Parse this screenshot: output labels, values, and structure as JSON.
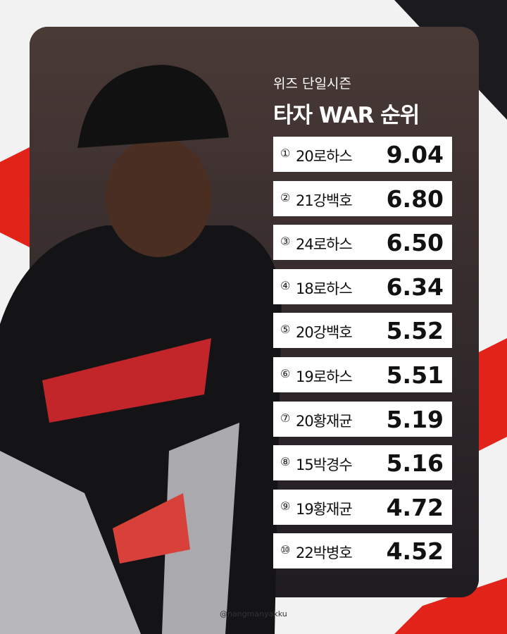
{
  "header": {
    "subtitle": "위즈 단일시즌",
    "title": "타자 WAR 순위"
  },
  "rows": [
    {
      "rank": "①",
      "name": "20로하스",
      "value": "9.04"
    },
    {
      "rank": "②",
      "name": "21강백호",
      "value": "6.80"
    },
    {
      "rank": "③",
      "name": "24로하스",
      "value": "6.50"
    },
    {
      "rank": "④",
      "name": "18로하스",
      "value": "6.34"
    },
    {
      "rank": "⑤",
      "name": "20강백호",
      "value": "5.52"
    },
    {
      "rank": "⑥",
      "name": "19로하스",
      "value": "5.51"
    },
    {
      "rank": "⑦",
      "name": "20황재균",
      "value": "5.19"
    },
    {
      "rank": "⑧",
      "name": "15박경수",
      "value": "5.16"
    },
    {
      "rank": "⑨",
      "name": "19황재균",
      "value": "4.72"
    },
    {
      "rank": "⑩",
      "name": "22박병호",
      "value": "4.52"
    }
  ],
  "credit": "@nangmanyakku"
}
